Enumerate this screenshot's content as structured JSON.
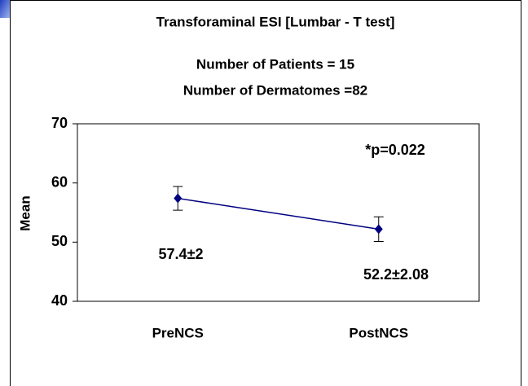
{
  "chart_data": {
    "type": "line",
    "title": "Transforaminal ESI [Lumbar - T test]",
    "subtitle": [
      "Number of Patients = 15",
      "Number of Dermatomes =82"
    ],
    "y_label": "Mean",
    "annotation": "*p=0.022",
    "categories": [
      "PreNCS",
      "PostNCS"
    ],
    "series": [
      {
        "color": "#000080",
        "values": [
          57.4,
          52.2
        ],
        "errors": [
          2,
          2.08
        ],
        "value_labels": [
          "57.4±2",
          "52.2±2.08"
        ]
      }
    ],
    "ylim": [
      40,
      70
    ],
    "yticks": [
      40,
      50,
      60,
      70
    ]
  }
}
